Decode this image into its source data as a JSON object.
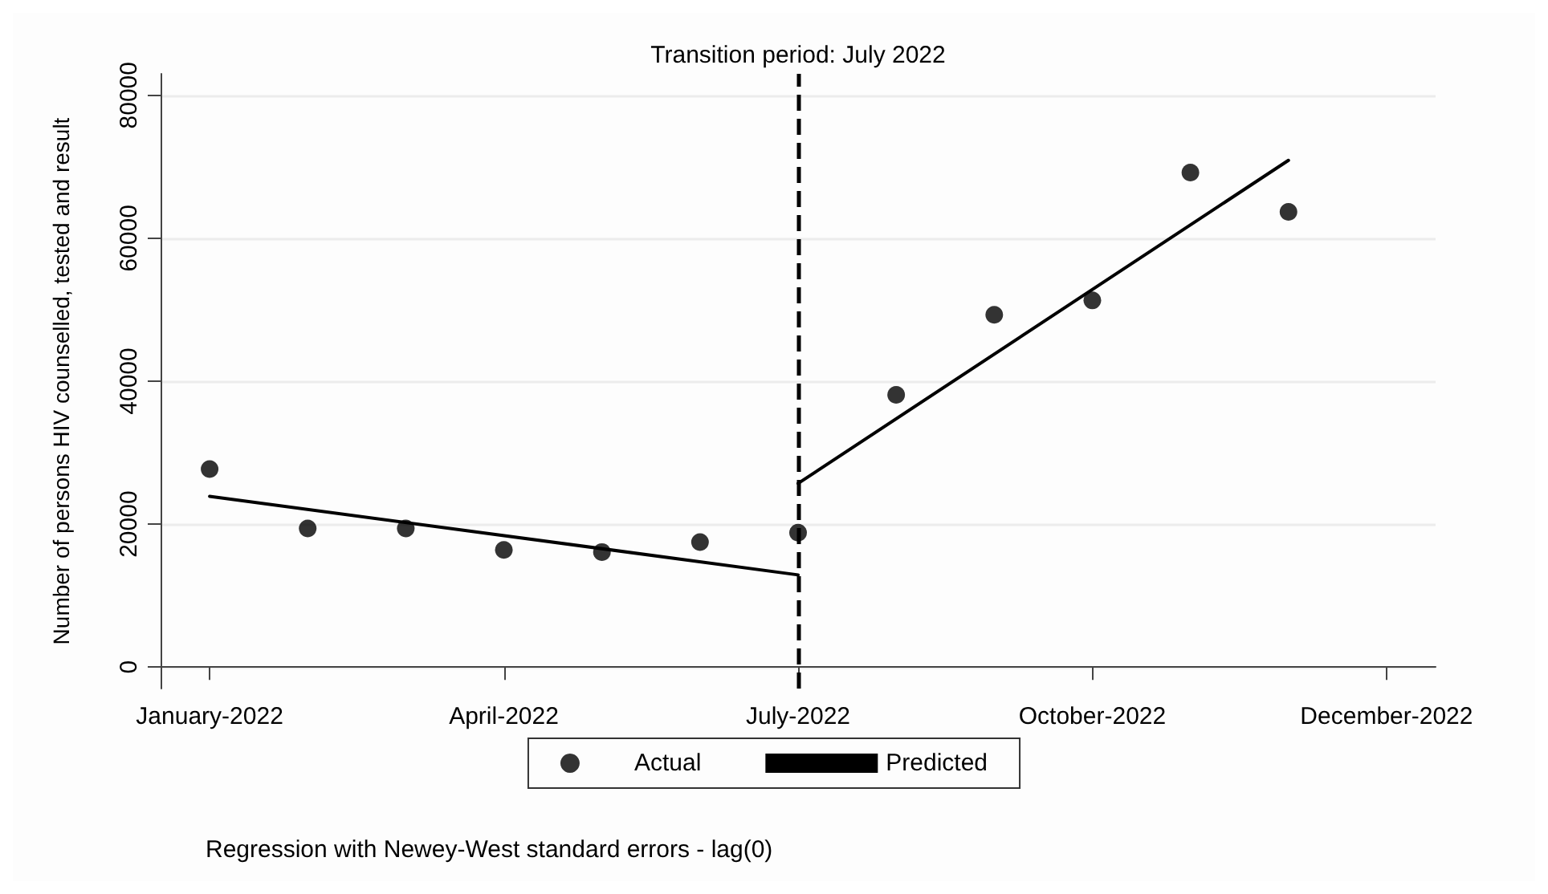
{
  "chart_data": {
    "type": "scatter",
    "ylabel": "Number of persons HIV counselled, tested and result",
    "categories": [
      "January-2022",
      null,
      null,
      "April-2022",
      null,
      null,
      "July-2022",
      null,
      null,
      "October-2022",
      null,
      null,
      "December-2022"
    ],
    "ylim": [
      -3000,
      83000
    ],
    "yticks": [
      0,
      20000,
      40000,
      60000,
      80000
    ],
    "grid": "y",
    "legend": "bottom",
    "series": [
      {
        "name": "Actual",
        "marker": "circle",
        "color": "#000000",
        "values": [
          27700,
          19400,
          19400,
          16400,
          16100,
          17500,
          18800,
          38100,
          49300,
          51300,
          69200,
          63700,
          null
        ]
      },
      {
        "name": "Predicted",
        "type": "line",
        "marker": "none",
        "line_style": "solid",
        "color": "#000000",
        "values": [
          23900,
          null,
          null,
          null,
          null,
          null,
          12900,
          null,
          null,
          null,
          null,
          null,
          null
        ]
      },
      {
        "type": "line",
        "marker": "none",
        "line_style": "solid",
        "color": "#000000",
        "values": [
          null,
          null,
          null,
          null,
          null,
          null,
          25700,
          null,
          null,
          null,
          null,
          70900,
          null
        ]
      }
    ],
    "ref_lines": [
      {
        "axis": "x",
        "value": "July-2022",
        "label": "Transition period: July 2022",
        "color": "#000000",
        "line_style": "dashed"
      }
    ],
    "annotations": [
      "Regression with Newey-West standard errors - lag(0)"
    ]
  }
}
